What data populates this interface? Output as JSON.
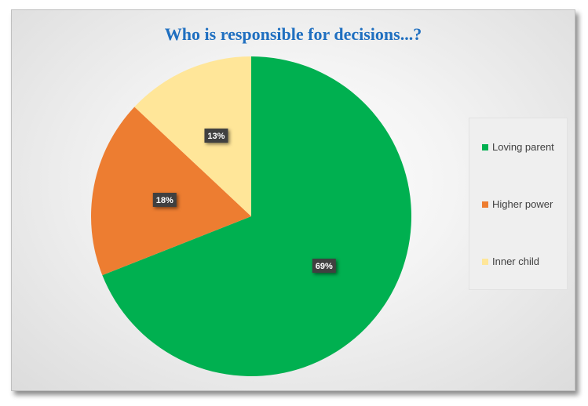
{
  "chart_data": {
    "type": "pie",
    "title": "Who is responsible for decisions...?",
    "categories": [
      "Loving parent",
      "Higher power",
      "Inner child"
    ],
    "values": [
      69,
      18,
      13
    ],
    "labels": [
      "69%",
      "18%",
      "13%"
    ],
    "colors": [
      "#00b050",
      "#ed7d31",
      "#ffe699"
    ],
    "legend": "right"
  }
}
